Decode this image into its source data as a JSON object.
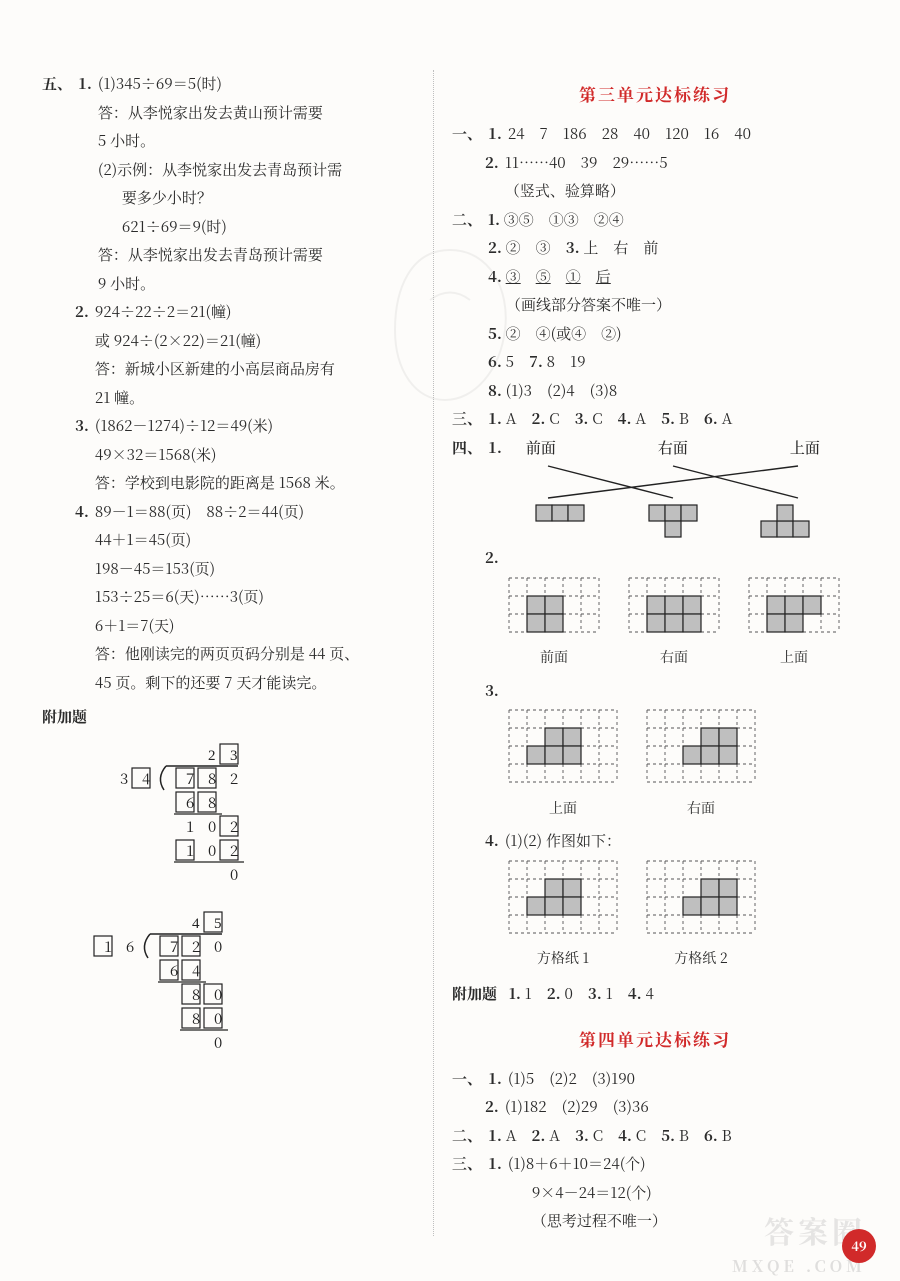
{
  "meta": {
    "page_number": "49"
  },
  "left": {
    "section5_label": "五、",
    "items": [
      {
        "num": "1.",
        "lines": [
          "(1)345÷69＝5(时)",
          "答：从李悦家出发去黄山预计需要",
          "5 小时。",
          "(2)示例：从李悦家出发去青岛预计需",
          "要多少小时？",
          "621÷69＝9(时)",
          "答：从李悦家出发去青岛预计需要",
          "9 小时。"
        ]
      },
      {
        "num": "2.",
        "lines": [
          "924÷22÷2＝21(幢)",
          "或 924÷(2×22)＝21(幢)",
          "答：新城小区新建的小高层商品房有",
          "21 幢。"
        ]
      },
      {
        "num": "3.",
        "lines": [
          "(1862－1274)÷12＝49(米)",
          "49×32＝1568(米)",
          "答：学校到电影院的距离是 1568 米。"
        ]
      },
      {
        "num": "4.",
        "lines": [
          "89－1＝88(页)　88÷2＝44(页)",
          "44＋1＝45(页)",
          "198－45＝153(页)",
          "153÷25＝6(天)……3(页)",
          "6＋1＝7(天)",
          "答：他刚读完的两页页码分别是 44 页、",
          "45 页。剩下的还要 7 天才能读完。"
        ]
      }
    ],
    "extra_label": "附加题",
    "longdiv1": {
      "divisor": [
        "3",
        "4"
      ],
      "divisor_box": [
        false,
        true
      ],
      "quotient": [
        "2",
        "3"
      ],
      "quotient_box": [
        false,
        true
      ],
      "dividend": [
        "7",
        "8",
        "2"
      ],
      "dividend_box": [
        true,
        true,
        false
      ],
      "rows": [
        {
          "digits": [
            "6",
            "8"
          ],
          "box": [
            true,
            true
          ],
          "offset": 0,
          "underline_cols": 2
        },
        {
          "digits": [
            "1",
            "0",
            "2"
          ],
          "box": [
            false,
            false,
            true
          ],
          "offset": 0,
          "underline_cols": 0
        },
        {
          "digits": [
            "1",
            "0",
            "2"
          ],
          "box": [
            true,
            false,
            true
          ],
          "offset": 0,
          "underline_cols": 3
        },
        {
          "digits": [
            "0"
          ],
          "box": [
            false
          ],
          "offset": 2,
          "underline_cols": 0
        }
      ]
    },
    "longdiv2": {
      "divisor": [
        "1",
        "6"
      ],
      "divisor_box": [
        true,
        false
      ],
      "quotient": [
        "4",
        "5"
      ],
      "quotient_box": [
        false,
        true
      ],
      "dividend": [
        "7",
        "2",
        "0"
      ],
      "dividend_box": [
        true,
        true,
        false
      ],
      "rows": [
        {
          "digits": [
            "6",
            "4"
          ],
          "box": [
            true,
            true
          ],
          "offset": 0,
          "underline_cols": 2
        },
        {
          "digits": [
            "8",
            "0"
          ],
          "box": [
            true,
            true
          ],
          "offset": 1,
          "underline_cols": 0
        },
        {
          "digits": [
            "8",
            "0"
          ],
          "box": [
            true,
            true
          ],
          "offset": 1,
          "underline_cols": 2
        },
        {
          "digits": [
            "0"
          ],
          "box": [
            false
          ],
          "offset": 2,
          "underline_cols": 0
        }
      ]
    }
  },
  "right": {
    "unit3_title": "第三单元达标练习",
    "s1_label": "一、",
    "s1_1_num": "1.",
    "s1_1_vals": [
      "24",
      "7",
      "186",
      "28",
      "40",
      "120",
      "16",
      "40"
    ],
    "s1_2_num": "2.",
    "s1_2_line1": "11……40　39　29……5",
    "s1_2_line2": "（竖式、验算略）",
    "s2_label": "二、",
    "s2_items": [
      {
        "num": "1.",
        "text": "③⑤　①③　②④"
      },
      {
        "num": "2.",
        "text": "②　③",
        "tail_num": "3.",
        "tail_text": "上　右　前"
      },
      {
        "num": "4.",
        "text_u": [
          "③",
          "⑤",
          "①",
          "后"
        ]
      },
      {
        "note": "（画线部分答案不唯一）"
      },
      {
        "num": "5.",
        "text": "②　④(或④　②)"
      },
      {
        "num": "6.",
        "text": "5",
        "tail_num": "7.",
        "tail_text": "8　19"
      },
      {
        "num": "8.",
        "text": "(1)3　(2)4　(3)8"
      }
    ],
    "s3_label": "三、",
    "s3_items": [
      "A",
      "C",
      "C",
      "A",
      "B",
      "A"
    ],
    "s4_label": "四、",
    "s4_1_num": "1.",
    "s4_1_labels": [
      "前面",
      "右面",
      "上面"
    ],
    "s4_1_shapes": [
      {
        "cells": [
          [
            0,
            0
          ],
          [
            1,
            0
          ],
          [
            2,
            0
          ]
        ]
      },
      {
        "cells": [
          [
            0,
            1
          ],
          [
            1,
            1
          ],
          [
            1,
            0
          ],
          [
            2,
            1
          ]
        ]
      },
      {
        "cells": [
          [
            0,
            0
          ],
          [
            1,
            0
          ],
          [
            1,
            1
          ],
          [
            2,
            0
          ]
        ]
      }
    ],
    "s4_2_num": "2.",
    "s4_2_grids": [
      {
        "cols": 5,
        "rows": 3,
        "filled": [
          [
            1,
            1
          ],
          [
            2,
            1
          ],
          [
            1,
            2
          ],
          [
            2,
            2
          ]
        ],
        "cap": "前面"
      },
      {
        "cols": 5,
        "rows": 3,
        "filled": [
          [
            1,
            1
          ],
          [
            2,
            1
          ],
          [
            3,
            1
          ],
          [
            1,
            2
          ],
          [
            2,
            2
          ],
          [
            3,
            2
          ]
        ],
        "cap": "右面"
      },
      {
        "cols": 5,
        "rows": 3,
        "filled": [
          [
            1,
            1
          ],
          [
            2,
            1
          ],
          [
            3,
            1
          ],
          [
            1,
            2
          ],
          [
            2,
            2
          ]
        ],
        "cap": "上面"
      }
    ],
    "s4_3_num": "3.",
    "s4_3_grids": [
      {
        "cols": 6,
        "rows": 4,
        "filled": [
          [
            2,
            1
          ],
          [
            3,
            1
          ],
          [
            1,
            2
          ],
          [
            2,
            2
          ],
          [
            3,
            2
          ]
        ],
        "cap": "上面"
      },
      {
        "cols": 6,
        "rows": 4,
        "filled": [
          [
            3,
            1
          ],
          [
            4,
            1
          ],
          [
            2,
            2
          ],
          [
            3,
            2
          ],
          [
            4,
            2
          ]
        ],
        "cap": "右面"
      }
    ],
    "s4_4_num": "4.",
    "s4_4_line": "(1)(2) 作图如下：",
    "s4_4_grids": [
      {
        "cols": 6,
        "rows": 4,
        "filled": [
          [
            2,
            1
          ],
          [
            3,
            1
          ],
          [
            1,
            2
          ],
          [
            2,
            2
          ],
          [
            3,
            2
          ]
        ],
        "cap": "方格纸 1"
      },
      {
        "cols": 6,
        "rows": 4,
        "filled": [
          [
            3,
            1
          ],
          [
            4,
            1
          ],
          [
            2,
            2
          ],
          [
            3,
            2
          ],
          [
            4,
            2
          ]
        ],
        "cap": "方格纸 2"
      }
    ],
    "extra_label": "附加题",
    "extra_items": [
      "1",
      "0",
      "1",
      "4"
    ],
    "unit4_title": "第四单元达标练习",
    "u4_s1_label": "一、",
    "u4_s1_1_num": "1.",
    "u4_s1_1": "(1)5　(2)2　(3)190",
    "u4_s1_2_num": "2.",
    "u4_s1_2": "(1)182　(2)29　(3)36",
    "u4_s2_label": "二、",
    "u4_s2_items": [
      "A",
      "A",
      "C",
      "C",
      "B",
      "B"
    ],
    "u4_s3_label": "三、",
    "u4_s3_num": "1.",
    "u4_s3_lines": [
      "(1)8＋6＋10＝24(个)",
      "9×4－24＝12(个)",
      "（思考过程不唯一）"
    ]
  },
  "watermark": {
    "a": "答案圈",
    "b": "MXQE .COM"
  }
}
